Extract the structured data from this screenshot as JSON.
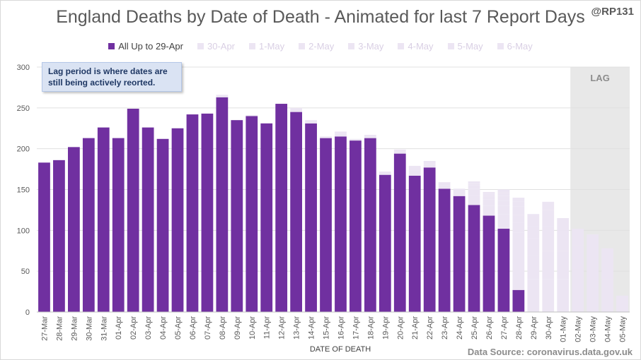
{
  "title": "England Deaths by Date of Death - Animated for last 7 Report Days",
  "handle": "@RP131",
  "annotation_line1": "Lag period is where dates are",
  "annotation_line2": "still being actively reorted.",
  "lag_label": "LAG",
  "source": "Data Source: coronavirus.data.gov.uk",
  "colors": {
    "main": "#7030a0",
    "increments": "#e6dcf0",
    "lag_band": "#e8e8e8",
    "grid": "#e0e0e0",
    "axis_text": "#595959"
  },
  "chart_data": {
    "type": "bar",
    "stacked": true,
    "title": "England Deaths by Date of Death - Animated for last 7 Report Days",
    "xlabel": "DATE OF DEATH",
    "ylabel": "",
    "ylim": [
      0,
      300
    ],
    "yticks": [
      0,
      50,
      100,
      150,
      200,
      250,
      300
    ],
    "grid": true,
    "legend": "top",
    "lag_start_category": "02-May",
    "categories": [
      "27-Mar",
      "28-Mar",
      "29-Mar",
      "30-Mar",
      "31-Mar",
      "01-Apr",
      "02-Apr",
      "03-Apr",
      "04-Apr",
      "05-Apr",
      "06-Apr",
      "07-Apr",
      "08-Apr",
      "09-Apr",
      "10-Apr",
      "11-Apr",
      "12-Apr",
      "13-Apr",
      "14-Apr",
      "15-Apr",
      "16-Apr",
      "17-Apr",
      "18-Apr",
      "19-Apr",
      "20-Apr",
      "21-Apr",
      "22-Apr",
      "23-Apr",
      "24-Apr",
      "25-Apr",
      "26-Apr",
      "27-Apr",
      "28-Apr",
      "29-Apr",
      "30-Apr",
      "01-May",
      "02-May",
      "03-May",
      "04-May",
      "05-May"
    ],
    "series": [
      {
        "name": "All Up to 29-Apr",
        "color": "#7030a0",
        "values": [
          183,
          186,
          202,
          213,
          226,
          213,
          249,
          226,
          212,
          225,
          242,
          243,
          263,
          235,
          240,
          231,
          255,
          245,
          231,
          213,
          215,
          210,
          213,
          168,
          194,
          167,
          177,
          151,
          142,
          131,
          118,
          102,
          27,
          0,
          0,
          0,
          0,
          0,
          0,
          0
        ]
      },
      {
        "name": "30-Apr",
        "color": "#ece5f3",
        "values": [
          0,
          0,
          0,
          0,
          0,
          0,
          0,
          0,
          0,
          0,
          0,
          0,
          3,
          0,
          1,
          0,
          0,
          5,
          2,
          2,
          3,
          0,
          2,
          2,
          3,
          6,
          4,
          4,
          5,
          12,
          12,
          18,
          40,
          0,
          0,
          0,
          0,
          0,
          0,
          0
        ]
      },
      {
        "name": "1-May",
        "color": "#ece5f3",
        "values": [
          0,
          0,
          0,
          0,
          0,
          0,
          0,
          0,
          0,
          0,
          0,
          0,
          0,
          0,
          0,
          0,
          0,
          0,
          2,
          0,
          3,
          2,
          2,
          2,
          2,
          6,
          4,
          4,
          4,
          8,
          8,
          10,
          30,
          40,
          0,
          0,
          0,
          0,
          0,
          0
        ]
      },
      {
        "name": "2-May",
        "color": "#ece5f3",
        "values": [
          0,
          0,
          0,
          0,
          0,
          0,
          0,
          0,
          0,
          0,
          0,
          0,
          0,
          0,
          0,
          0,
          0,
          0,
          0,
          0,
          0,
          0,
          0,
          0,
          0,
          0,
          0,
          0,
          0,
          4,
          4,
          6,
          12,
          30,
          40,
          0,
          0,
          0,
          0,
          0
        ]
      },
      {
        "name": "3-May",
        "color": "#ece5f3",
        "values": [
          0,
          0,
          0,
          0,
          0,
          0,
          0,
          0,
          0,
          0,
          0,
          0,
          0,
          0,
          0,
          0,
          0,
          0,
          0,
          0,
          0,
          0,
          0,
          0,
          0,
          0,
          0,
          0,
          0,
          2,
          2,
          6,
          10,
          20,
          35,
          40,
          0,
          0,
          0,
          0
        ]
      },
      {
        "name": "4-May",
        "color": "#ece5f3",
        "values": [
          0,
          0,
          0,
          0,
          0,
          0,
          0,
          0,
          0,
          0,
          0,
          0,
          0,
          0,
          0,
          0,
          0,
          0,
          0,
          0,
          0,
          0,
          0,
          0,
          0,
          0,
          0,
          0,
          0,
          1,
          1,
          4,
          10,
          15,
          30,
          35,
          52,
          45,
          0,
          0
        ]
      },
      {
        "name": "5-May",
        "color": "#ece5f3",
        "values": [
          0,
          0,
          0,
          0,
          0,
          0,
          0,
          0,
          0,
          0,
          0,
          0,
          0,
          0,
          0,
          0,
          0,
          0,
          0,
          0,
          0,
          0,
          0,
          0,
          0,
          0,
          0,
          0,
          0,
          2,
          2,
          4,
          6,
          10,
          20,
          25,
          30,
          30,
          40,
          0
        ]
      },
      {
        "name": "6-May",
        "color": "#ece5f3",
        "values": [
          0,
          0,
          0,
          0,
          0,
          0,
          0,
          0,
          0,
          0,
          0,
          0,
          0,
          0,
          0,
          0,
          0,
          0,
          0,
          0,
          0,
          0,
          0,
          0,
          0,
          0,
          0,
          0,
          0,
          0,
          0,
          0,
          5,
          5,
          10,
          15,
          20,
          20,
          38,
          20
        ]
      }
    ]
  }
}
